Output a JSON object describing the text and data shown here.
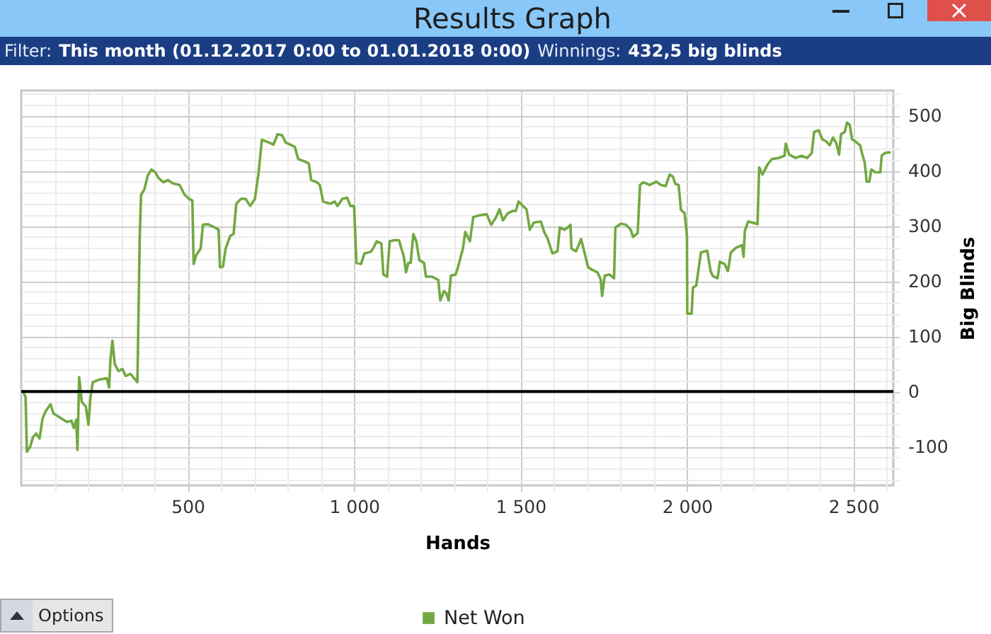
{
  "chart_data": {
    "type": "line",
    "title": "Results Graph",
    "annotations": [
      "Filter:",
      "This month (01.12.2017 0:00 to 01.01.2018 0:00)",
      "Winnings:",
      "432,5 big blinds",
      "Options"
    ],
    "xlabel": "Hands",
    "ylabel": "Big Blinds",
    "series": [
      {
        "name": "Net Won",
        "color": "#72a842",
        "x": [
          5,
          13,
          17,
          27,
          35,
          45,
          55,
          64,
          73,
          88,
          97,
          116,
          137,
          151,
          158,
          165,
          169,
          174,
          182,
          194,
          202,
          208,
          215,
          236,
          257,
          264,
          268,
          274,
          281,
          292,
          304,
          314,
          328,
          342,
          349,
          356,
          360,
          370,
          380,
          391,
          403,
          412,
          427,
          441,
          455,
          476,
          490,
          504,
          514,
          518,
          525,
          539,
          546,
          561,
          582,
          593,
          597,
          606,
          614,
          628,
          638,
          646,
          660,
          674,
          688,
          702,
          713,
          723,
          744,
          758,
          770,
          784,
          794,
          808,
          822,
          832,
          850,
          864,
          871,
          888,
          897,
          907,
          928,
          942,
          950,
          965,
          979,
          989,
          1000,
          1007,
          1021,
          1031,
          1050,
          1057,
          1068,
          1082,
          1088,
          1099,
          1107,
          1121,
          1135,
          1142,
          1149,
          1156,
          1163,
          1170,
          1178,
          1187,
          1196,
          1210,
          1216,
          1234,
          1253,
          1259,
          1270,
          1277,
          1284,
          1291,
          1305,
          1312,
          1327,
          1334,
          1348,
          1358,
          1376,
          1398,
          1412,
          1426,
          1437,
          1447,
          1462,
          1476,
          1486,
          1494,
          1504,
          1518,
          1528,
          1540,
          1561,
          1571,
          1582,
          1596,
          1611,
          1618,
          1632,
          1642,
          1650,
          1653,
          1667,
          1682,
          1693,
          1703,
          1717,
          1731,
          1741,
          1745,
          1753,
          1767,
          1781,
          1785,
          1802,
          1817,
          1831,
          1838,
          1852,
          1859,
          1869,
          1888,
          1908,
          1922,
          1936,
          1948,
          1958,
          1965,
          1975,
          1982,
          1993,
          2000,
          2001,
          2014,
          2018,
          2028,
          2035,
          2042,
          2061,
          2071,
          2078,
          2092,
          2099,
          2113,
          2123,
          2132,
          2149,
          2166,
          2170,
          2174,
          2184,
          2202,
          2212,
          2217,
          2227,
          2241,
          2255,
          2276,
          2293,
          2297,
          2307,
          2326,
          2344,
          2361,
          2375,
          2382,
          2396,
          2406,
          2418,
          2429,
          2439,
          2449,
          2457,
          2463,
          2474,
          2481,
          2489,
          2496,
          2506,
          2520,
          2528,
          2534,
          2540,
          2548,
          2554,
          2566,
          2581,
          2585,
          2595,
          2609
        ],
        "values": [
          0,
          -10,
          -109,
          -100,
          -83,
          -76,
          -85,
          -49,
          -36,
          -23,
          -40,
          -47,
          -55,
          -53,
          -66,
          -51,
          -106,
          26,
          -19,
          -27,
          -60,
          -10,
          17,
          22,
          24,
          7,
          58,
          92,
          50,
          37,
          41,
          28,
          32,
          22,
          17,
          280,
          356,
          366,
          391,
          402,
          397,
          387,
          379,
          383,
          377,
          374,
          357,
          349,
          346,
          231,
          246,
          259,
          302,
          303,
          297,
          293,
          225,
          226,
          259,
          282,
          285,
          340,
          349,
          349,
          336,
          349,
          396,
          456,
          451,
          447,
          466,
          464,
          451,
          447,
          443,
          421,
          417,
          413,
          383,
          379,
          374,
          344,
          340,
          344,
          336,
          349,
          351,
          336,
          336,
          233,
          231,
          250,
          253,
          259,
          272,
          268,
          212,
          208,
          272,
          274,
          274,
          259,
          246,
          216,
          233,
          233,
          285,
          272,
          238,
          233,
          208,
          208,
          202,
          165,
          182,
          178,
          165,
          210,
          212,
          225,
          259,
          289,
          272,
          316,
          319,
          321,
          302,
          315,
          330,
          310,
          323,
          327,
          327,
          344,
          338,
          330,
          293,
          306,
          308,
          289,
          276,
          250,
          254,
          297,
          293,
          297,
          302,
          259,
          254,
          276,
          250,
          225,
          220,
          216,
          203,
          173,
          210,
          212,
          205,
          297,
          304,
          302,
          293,
          280,
          287,
          374,
          379,
          374,
          380,
          374,
          372,
          393,
          389,
          376,
          374,
          329,
          323,
          282,
          141,
          141,
          188,
          192,
          222,
          252,
          255,
          218,
          209,
          205,
          235,
          231,
          218,
          252,
          261,
          265,
          244,
          291,
          308,
          305,
          303,
          406,
          393,
          410,
          421,
          423,
          427,
          449,
          429,
          423,
          427,
          423,
          432,
          470,
          473,
          457,
          453,
          446,
          460,
          449,
          429,
          466,
          470,
          487,
          483,
          457,
          453,
          446,
          427,
          415,
          380,
          380,
          402,
          397,
          397,
          427,
          432,
          433
        ]
      }
    ],
    "xlim": [
      0,
      2620
    ],
    "ylim": [
      -170,
      545
    ],
    "xticks": [
      {
        "value": 100,
        "label": null
      },
      {
        "value": 200,
        "label": null
      },
      {
        "value": 300,
        "label": null
      },
      {
        "value": 400,
        "label": null
      },
      500,
      {
        "value": 600,
        "label": null
      },
      {
        "value": 700,
        "label": null
      },
      {
        "value": 800,
        "label": null
      },
      {
        "value": 900,
        "label": null
      },
      {
        "value": 1000,
        "label": "1 000"
      },
      {
        "value": 1100,
        "label": null
      },
      {
        "value": 1200,
        "label": null
      },
      {
        "value": 1300,
        "label": null
      },
      {
        "value": 1400,
        "label": null
      },
      {
        "value": 1500,
        "label": "1 500"
      },
      {
        "value": 1600,
        "label": null
      },
      {
        "value": 1700,
        "label": null
      },
      {
        "value": 1800,
        "label": null
      },
      {
        "value": 1900,
        "label": null
      },
      {
        "value": 2000,
        "label": "2 000"
      },
      {
        "value": 2100,
        "label": null
      },
      {
        "value": 2200,
        "label": null
      },
      {
        "value": 2300,
        "label": null
      },
      {
        "value": 2400,
        "label": null
      },
      {
        "value": 2500,
        "label": "2 500"
      },
      {
        "value": 2600,
        "label": null
      }
    ],
    "yticks": [
      {
        "value": -160,
        "label": null
      },
      {
        "value": -140,
        "label": null
      },
      {
        "value": -120,
        "label": null
      },
      -100,
      {
        "value": -80,
        "label": null
      },
      {
        "value": -60,
        "label": null
      },
      {
        "value": -40,
        "label": null
      },
      {
        "value": -20,
        "label": null
      },
      0,
      {
        "value": 20,
        "label": null
      },
      {
        "value": 40,
        "label": null
      },
      {
        "value": 60,
        "label": null
      },
      {
        "value": 80,
        "label": null
      },
      100,
      {
        "value": 120,
        "label": null
      },
      {
        "value": 140,
        "label": null
      },
      {
        "value": 160,
        "label": null
      },
      {
        "value": 180,
        "label": null
      },
      200,
      {
        "value": 220,
        "label": null
      },
      {
        "value": 240,
        "label": null
      },
      {
        "value": 260,
        "label": null
      },
      {
        "value": 280,
        "label": null
      },
      300,
      {
        "value": 320,
        "label": null
      },
      {
        "value": 340,
        "label": null
      },
      {
        "value": 360,
        "label": null
      },
      {
        "value": 380,
        "label": null
      },
      400,
      {
        "value": 420,
        "label": null
      },
      {
        "value": 440,
        "label": null
      },
      {
        "value": 460,
        "label": null
      },
      {
        "value": 480,
        "label": null
      },
      500,
      {
        "value": 520,
        "label": null
      },
      {
        "value": 540,
        "label": null
      }
    ],
    "grid": true,
    "legend": "bottom",
    "line_style": "solid",
    "ref_lines": [
      {
        "axis": "y",
        "value": 0,
        "color": "#000000"
      }
    ]
  }
}
